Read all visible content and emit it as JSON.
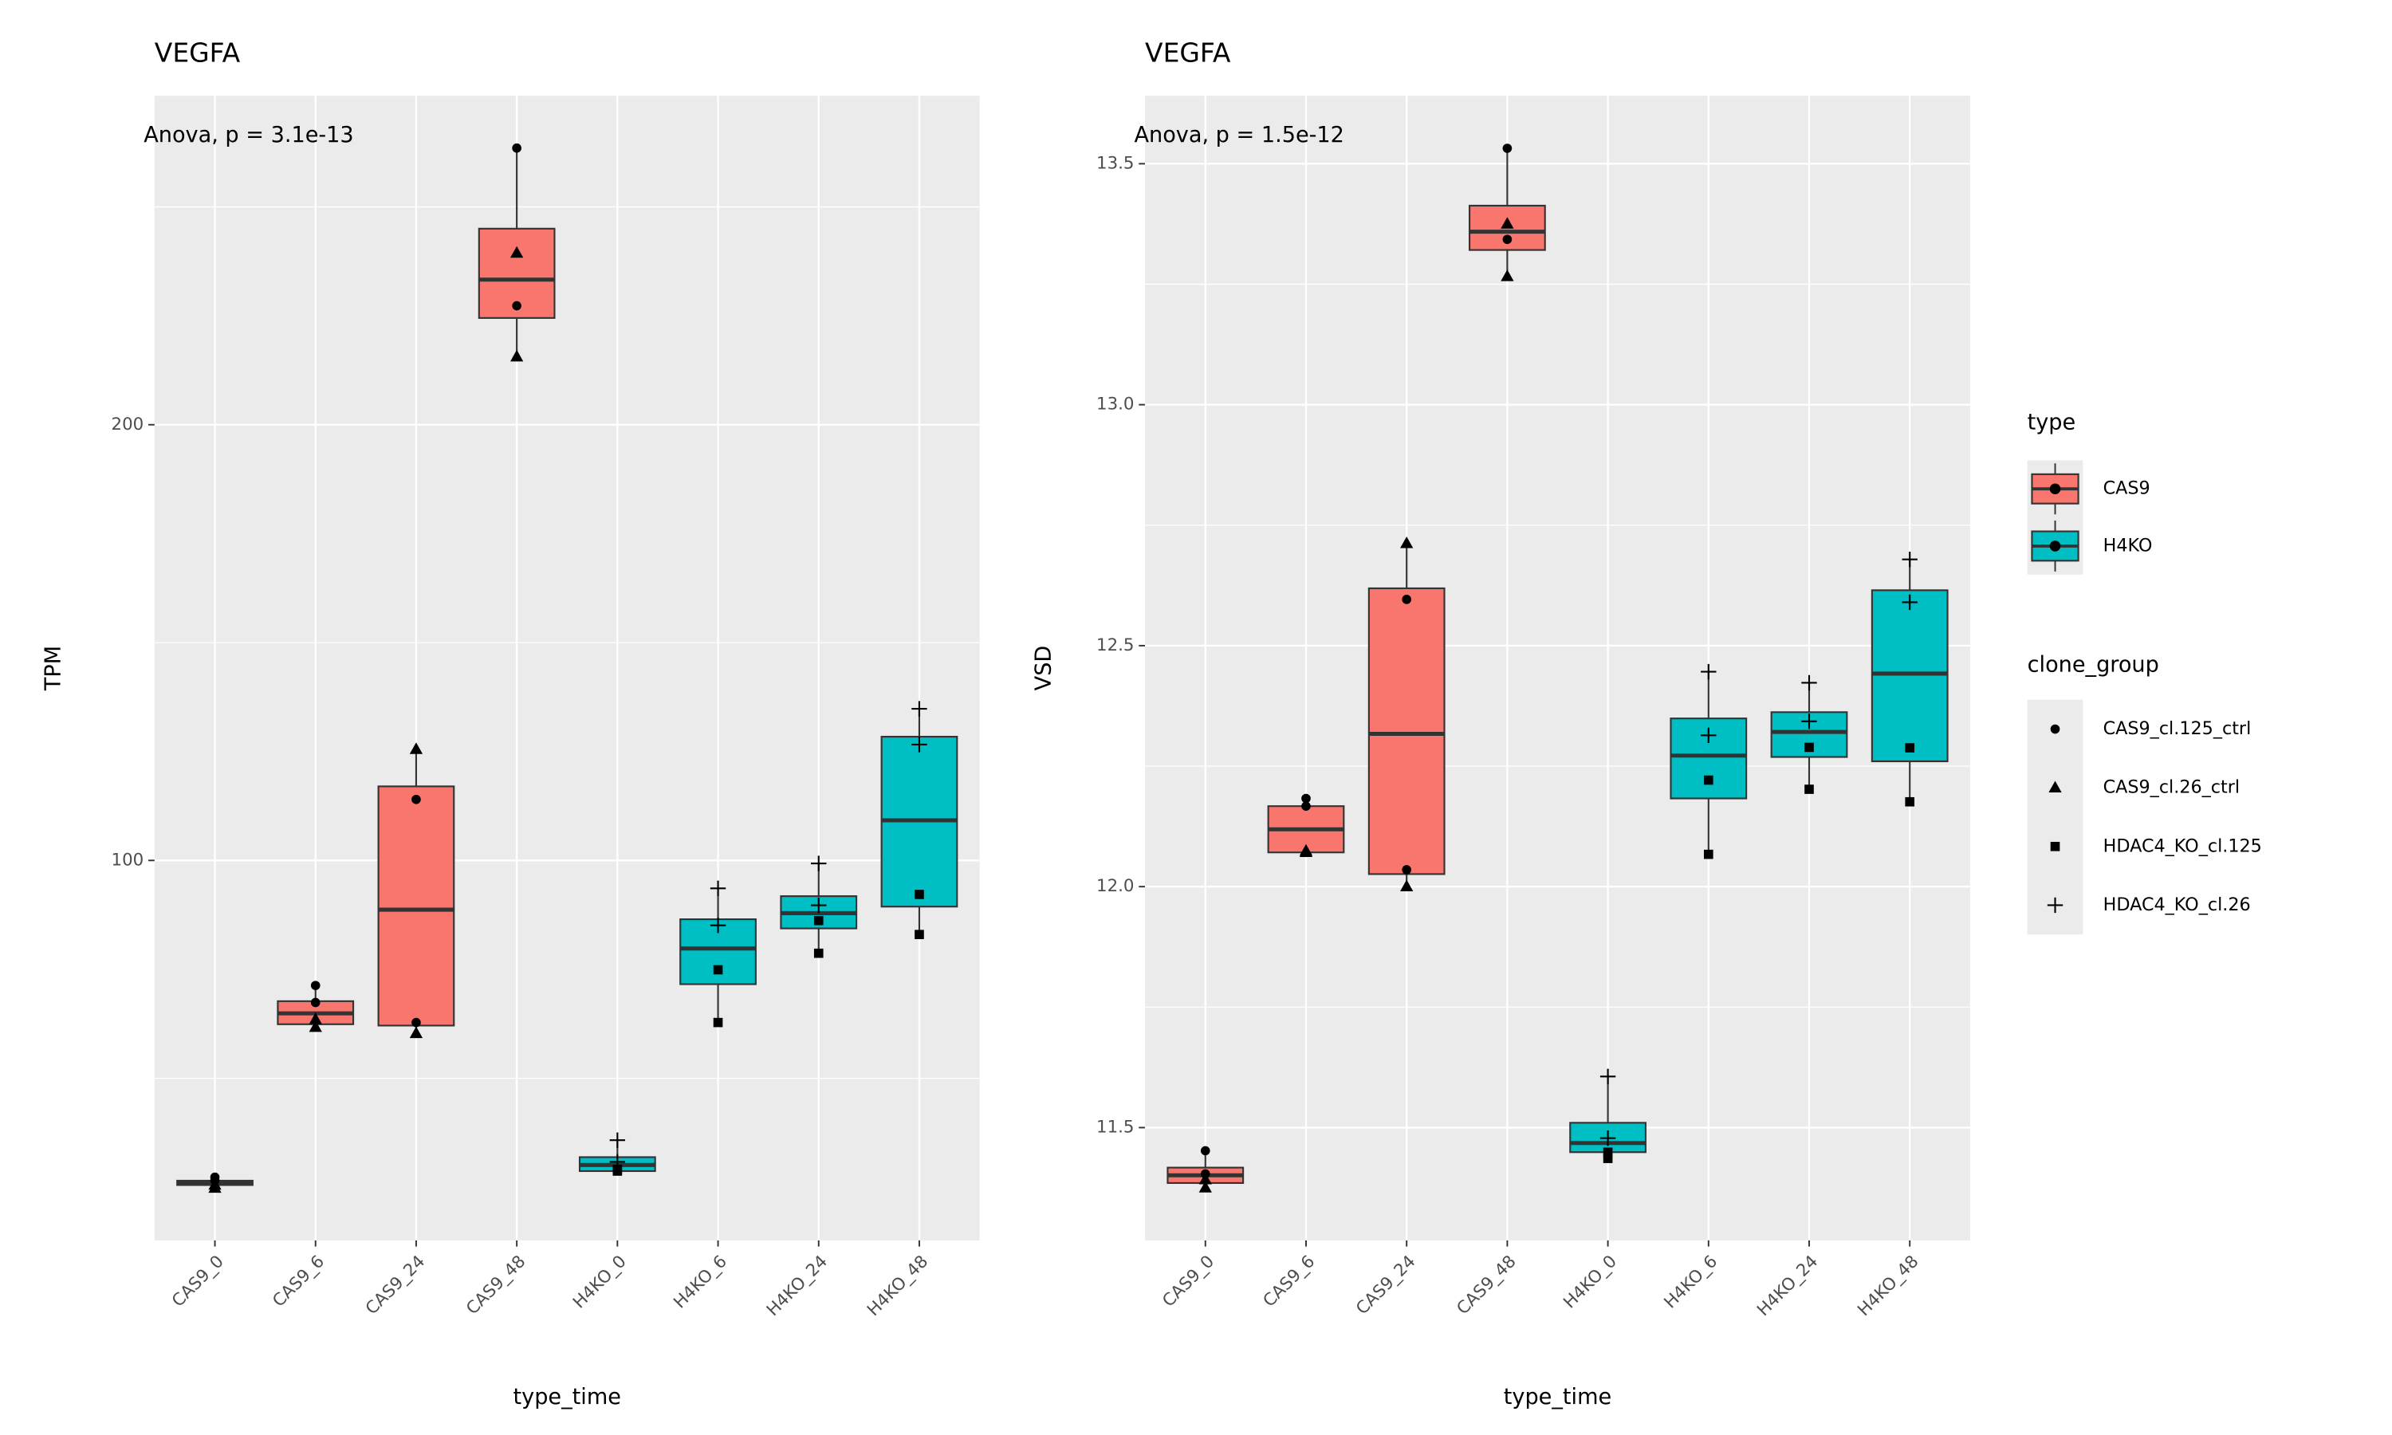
{
  "legend": {
    "type_title": "type",
    "types": [
      {
        "name": "CAS9",
        "color": "#f8766d"
      },
      {
        "name": "H4KO",
        "color": "#00bfc4"
      }
    ],
    "shape_title": "clone_group",
    "shapes": [
      {
        "name": "CAS9_cl.125_ctrl",
        "shape": "circle"
      },
      {
        "name": "CAS9_cl.26_ctrl",
        "shape": "triangle"
      },
      {
        "name": "HDAC4_KO_cl.125",
        "shape": "square"
      },
      {
        "name": "HDAC4_KO_cl.26",
        "shape": "plus"
      }
    ]
  },
  "chart_data": [
    {
      "type": "box",
      "title": "VEGFA",
      "annotation": "Anova, p = 3.1e-13",
      "x_label": "type_time",
      "y_label": "TPM",
      "categories": [
        "CAS9_0",
        "CAS9_6",
        "CAS9_24",
        "CAS9_48",
        "H4KO_0",
        "H4KO_6",
        "H4KO_24",
        "H4KO_48"
      ],
      "ylim": [
        12.8,
        275.5
      ],
      "yticks": [
        100,
        200
      ],
      "minor_yticks": [
        50,
        150,
        250
      ],
      "grid": true,
      "boxes": [
        {
          "min": 24.8,
          "q1": 25.5,
          "median": 26,
          "q3": 26.5,
          "max": 27.3,
          "color": "#f8766d"
        },
        {
          "min": 61.7,
          "q1": 62.4,
          "median": 64.9,
          "q3": 67.7,
          "max": 71.3,
          "color": "#f8766d"
        },
        {
          "min": 60.3,
          "q1": 62.1,
          "median": 88.7,
          "q3": 117.0,
          "max": 125.5,
          "color": "#f8766d"
        },
        {
          "min": 215.6,
          "q1": 224.5,
          "median": 233.3,
          "q3": 245.0,
          "max": 263.5,
          "color": "#f8766d"
        },
        {
          "min": 28.7,
          "q1": 28.7,
          "median": 30.1,
          "q3": 31.9,
          "max": 35.8,
          "color": "#00bfc4"
        },
        {
          "min": 62.8,
          "q1": 71.6,
          "median": 79.8,
          "q3": 86.5,
          "max": 93.6,
          "color": "#00bfc4"
        },
        {
          "min": 78.7,
          "q1": 84.4,
          "median": 87.9,
          "q3": 91.8,
          "max": 99.3,
          "color": "#00bfc4"
        },
        {
          "min": 83.0,
          "q1": 89.4,
          "median": 109.2,
          "q3": 128.4,
          "max": 134.8,
          "color": "#00bfc4"
        }
      ],
      "points": [
        [
          [
            27.3,
            26.5
          ],
          [
            71.3,
            67.4
          ],
          [
            114.0,
            62.8
          ],
          [
            263.5,
            227.3
          ],
          [],
          [],
          [],
          []
        ],
        [
          [
            24.8,
            25.5
          ],
          [
            61.7,
            63.5
          ],
          [
            125.5,
            60.3
          ],
          [
            215.6,
            239.4
          ],
          [],
          [],
          [],
          []
        ],
        [
          [],
          [],
          [],
          [],
          [
            29.1,
            28.7
          ],
          [
            74.9,
            62.8
          ],
          [
            86.2,
            78.7
          ],
          [
            92.2,
            83.0
          ]
        ],
        [
          [],
          [],
          [],
          [],
          [
            35.8,
            30.8
          ],
          [
            93.6,
            85.1
          ],
          [
            99.3,
            89.7
          ],
          [
            134.8,
            126.6
          ]
        ]
      ]
    },
    {
      "type": "box",
      "title": "VEGFA",
      "annotation": "Anova, p = 1.5e-12",
      "x_label": "type_time",
      "y_label": "VSD",
      "categories": [
        "CAS9_0",
        "CAS9_6",
        "CAS9_24",
        "CAS9_48",
        "H4KO_0",
        "H4KO_6",
        "H4KO_24",
        "H4KO_48"
      ],
      "ylim": [
        11.266,
        13.641
      ],
      "yticks": [
        11.5,
        {
          "value": 12,
          "label": "12.0"
        },
        12.5,
        {
          "value": 13,
          "label": "13.0"
        },
        13.5
      ],
      "minor_yticks": [
        11.75,
        12.25,
        12.75,
        13.25
      ],
      "grid": true,
      "boxes": [
        {
          "min": 11.375,
          "q1": 11.385,
          "median": 11.401,
          "q3": 11.417,
          "max": 11.452,
          "color": "#f8766d"
        },
        {
          "min": 12.071,
          "q1": 12.071,
          "median": 12.119,
          "q3": 12.167,
          "max": 12.183,
          "color": "#f8766d"
        },
        {
          "min": 12.0,
          "q1": 12.026,
          "median": 12.317,
          "q3": 12.619,
          "max": 12.712,
          "color": "#f8766d"
        },
        {
          "min": 13.266,
          "q1": 13.321,
          "median": 13.359,
          "q3": 13.413,
          "max": 13.532,
          "color": "#f8766d"
        },
        {
          "min": 11.436,
          "q1": 11.449,
          "median": 11.468,
          "q3": 11.51,
          "max": 11.606,
          "color": "#00bfc4"
        },
        {
          "min": 12.067,
          "q1": 12.183,
          "median": 12.272,
          "q3": 12.349,
          "max": 12.446,
          "color": "#00bfc4"
        },
        {
          "min": 12.202,
          "q1": 12.269,
          "median": 12.321,
          "q3": 12.362,
          "max": 12.423,
          "color": "#00bfc4"
        },
        {
          "min": 12.176,
          "q1": 12.26,
          "median": 12.442,
          "q3": 12.615,
          "max": 12.679,
          "color": "#00bfc4"
        }
      ],
      "points": [
        [
          [
            11.452,
            11.404
          ],
          [
            12.183,
            12.167
          ],
          [
            12.596,
            12.035
          ],
          [
            13.532,
            13.343
          ],
          [],
          [],
          [],
          []
        ],
        [
          [
            11.375,
            11.392
          ],
          [
            12.074,
            12.071
          ],
          [
            12.712,
            12.0
          ],
          [
            13.266,
            13.375
          ],
          [],
          [],
          [],
          []
        ],
        [
          [],
          [],
          [],
          [],
          [
            11.449,
            11.436
          ],
          [
            12.221,
            12.067
          ],
          [
            12.289,
            12.202
          ],
          [
            12.288,
            12.176
          ]
        ],
        [
          [],
          [],
          [],
          [],
          [
            11.606,
            11.478
          ],
          [
            12.446,
            12.314
          ],
          [
            12.423,
            12.343
          ],
          [
            12.679,
            12.59
          ]
        ]
      ]
    }
  ]
}
